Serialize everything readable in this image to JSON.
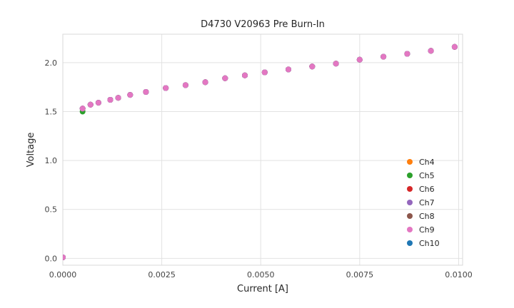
{
  "chart_data": {
    "type": "scatter",
    "title": "D4730 V20963 Pre Burn-In",
    "xlabel": "Current [A]",
    "ylabel": "Voltage",
    "grid": true,
    "legend_position": "lower right",
    "xlim": [
      0.0,
      0.0101
    ],
    "ylim": [
      -0.07,
      2.29
    ],
    "xtick_values": [
      0.0,
      0.0025,
      0.005,
      0.0075,
      0.01
    ],
    "xtick_labels": [
      "0.0000",
      "0.0025",
      "0.0050",
      "0.0075",
      "0.0100"
    ],
    "ytick_values": [
      0.0,
      0.5,
      1.0,
      1.5,
      2.0
    ],
    "ytick_labels": [
      "0.0",
      "0.5",
      "1.0",
      "1.5",
      "2.0"
    ],
    "x": [
      0.0,
      0.0005,
      0.0007,
      0.0009,
      0.0012,
      0.0014,
      0.0017,
      0.0021,
      0.0026,
      0.0031,
      0.0036,
      0.0041,
      0.0046,
      0.0051,
      0.0057,
      0.0063,
      0.0069,
      0.0075,
      0.0081,
      0.0087,
      0.0093,
      0.0099
    ],
    "y_shared": [
      0.01,
      1.53,
      1.57,
      1.59,
      1.62,
      1.64,
      1.67,
      1.7,
      1.74,
      1.77,
      1.8,
      1.84,
      1.87,
      1.9,
      1.93,
      1.96,
      1.99,
      2.03,
      2.06,
      2.09,
      2.12,
      2.16
    ],
    "series": [
      {
        "name": "Ch4",
        "color": "#ff7f0e",
        "z": 1
      },
      {
        "name": "Ch5",
        "color": "#2ca02c",
        "z": 2,
        "y": [
          0.01,
          1.5,
          1.57,
          1.59,
          1.62,
          1.64,
          1.67,
          1.7,
          1.74,
          1.77,
          1.8,
          1.84,
          1.87,
          1.9,
          1.93,
          1.96,
          1.99,
          2.03,
          2.06,
          2.09,
          2.12,
          2.16
        ]
      },
      {
        "name": "Ch6",
        "color": "#d62728",
        "z": 3
      },
      {
        "name": "Ch7",
        "color": "#9467bd",
        "z": 4
      },
      {
        "name": "Ch8",
        "color": "#8c564b",
        "z": 5
      },
      {
        "name": "Ch9",
        "color": "#e377c2",
        "z": 7
      },
      {
        "name": "Ch10",
        "color": "#1f77b4",
        "z": 6
      }
    ],
    "marker_radius": 4,
    "colors": {
      "grid": "#e2e2e2",
      "spine": "#d8d8d8",
      "text": "#262626",
      "tick_text": "#444444",
      "plot_bg": "#ffffff"
    }
  }
}
